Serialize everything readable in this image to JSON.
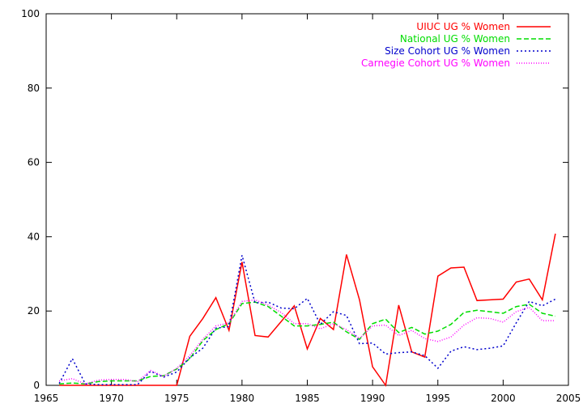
{
  "chart_data": {
    "type": "line",
    "title": "",
    "xlabel": "",
    "ylabel": "",
    "xlim": [
      1965,
      2005
    ],
    "ylim": [
      0,
      100
    ],
    "x_ticks": [
      1965,
      1970,
      1975,
      1980,
      1985,
      1990,
      1995,
      2000,
      2005
    ],
    "y_ticks": [
      0,
      20,
      40,
      60,
      80,
      100
    ],
    "grid": false,
    "legend_position": "top-right",
    "series": [
      {
        "name": "UIUC UG % Women",
        "color": "#ff0000",
        "dash": "solid",
        "x": [
          1966,
          1967,
          1968,
          1969,
          1970,
          1971,
          1972,
          1973,
          1974,
          1975,
          1976,
          1977,
          1978,
          1979,
          1980,
          1981,
          1982,
          1983,
          1984,
          1985,
          1986,
          1987,
          1988,
          1989,
          1990,
          1991,
          1992,
          1993,
          1994,
          1995,
          1996,
          1997,
          1998,
          1999,
          2000,
          2001,
          2002,
          2003,
          2004
        ],
        "values": [
          0,
          0,
          0,
          0,
          0,
          0,
          0,
          0,
          0,
          0,
          13.2,
          18,
          23.6,
          14.8,
          33.2,
          13.4,
          13,
          17.2,
          21.4,
          9.8,
          18,
          15,
          35.2,
          23,
          5,
          0,
          21.6,
          9,
          7.6,
          29.4,
          31.6,
          31.8,
          22.8,
          23,
          23.2,
          27.8,
          28.6,
          23,
          40.8
        ]
      },
      {
        "name": "National UG % Women",
        "color": "#00dd00",
        "dash": "dashed",
        "x": [
          1966,
          1967,
          1968,
          1969,
          1970,
          1971,
          1972,
          1973,
          1974,
          1975,
          1976,
          1977,
          1978,
          1979,
          1980,
          1981,
          1982,
          1983,
          1984,
          1985,
          1986,
          1987,
          1988,
          1989,
          1990,
          1991,
          1992,
          1993,
          1994,
          1995,
          1996,
          1997,
          1998,
          1999,
          2000,
          2001,
          2002,
          2003,
          2004
        ],
        "values": [
          0.4,
          0.6,
          0.4,
          1,
          1.2,
          1.2,
          1.2,
          2.4,
          2.6,
          4.4,
          7.2,
          12,
          15,
          16.6,
          22,
          22.4,
          21.2,
          18.6,
          16,
          16,
          16.4,
          17,
          14.4,
          12.4,
          16.6,
          17.8,
          14.2,
          15.6,
          13.8,
          14.6,
          16.4,
          19.6,
          20.2,
          19.8,
          19.4,
          21.2,
          21.8,
          19.4,
          18.6
        ]
      },
      {
        "name": "Size Cohort UG % Women",
        "color": "#0000cc",
        "dash": "dotted",
        "x": [
          1966,
          1967,
          1968,
          1969,
          1970,
          1971,
          1972,
          1973,
          1974,
          1975,
          1976,
          1977,
          1978,
          1979,
          1980,
          1981,
          1982,
          1983,
          1984,
          1985,
          1986,
          1987,
          1988,
          1989,
          1990,
          1991,
          1992,
          1993,
          1994,
          1995,
          1996,
          1997,
          1998,
          1999,
          2000,
          2001,
          2002,
          2003,
          2004
        ],
        "values": [
          0.5,
          7.2,
          0.4,
          0.2,
          0.2,
          0.2,
          0.2,
          3.8,
          2.2,
          3.6,
          7.4,
          10,
          15.4,
          15.8,
          35,
          22.2,
          22.4,
          20.8,
          20.6,
          23.4,
          16.4,
          19.8,
          18.8,
          11.2,
          11.4,
          8.4,
          8.8,
          9,
          8,
          4.6,
          9.2,
          10.4,
          9.6,
          10,
          10.6,
          16.8,
          22.6,
          21.4,
          23.2
        ]
      },
      {
        "name": "Carnegie Cohort UG % Women",
        "color": "#ff00ff",
        "dash": "fine-dotted",
        "x": [
          1966,
          1967,
          1968,
          1969,
          1970,
          1971,
          1972,
          1973,
          1974,
          1975,
          1976,
          1977,
          1978,
          1979,
          1980,
          1981,
          1982,
          1983,
          1984,
          1985,
          1986,
          1987,
          1988,
          1989,
          1990,
          1991,
          1992,
          1993,
          1994,
          1995,
          1996,
          1997,
          1998,
          1999,
          2000,
          2001,
          2002,
          2003,
          2004
        ],
        "values": [
          1.2,
          1.8,
          0.4,
          1.4,
          1.6,
          1.6,
          1,
          4,
          2.4,
          4.6,
          8,
          12.4,
          16,
          16.8,
          22.6,
          23,
          21.6,
          19.6,
          16.6,
          16.6,
          15.2,
          16.6,
          15,
          12.6,
          16,
          16.2,
          13.4,
          14.8,
          12.6,
          11.8,
          13,
          16.2,
          18.2,
          18,
          17,
          19.8,
          21,
          17.4,
          17.4
        ]
      }
    ]
  }
}
